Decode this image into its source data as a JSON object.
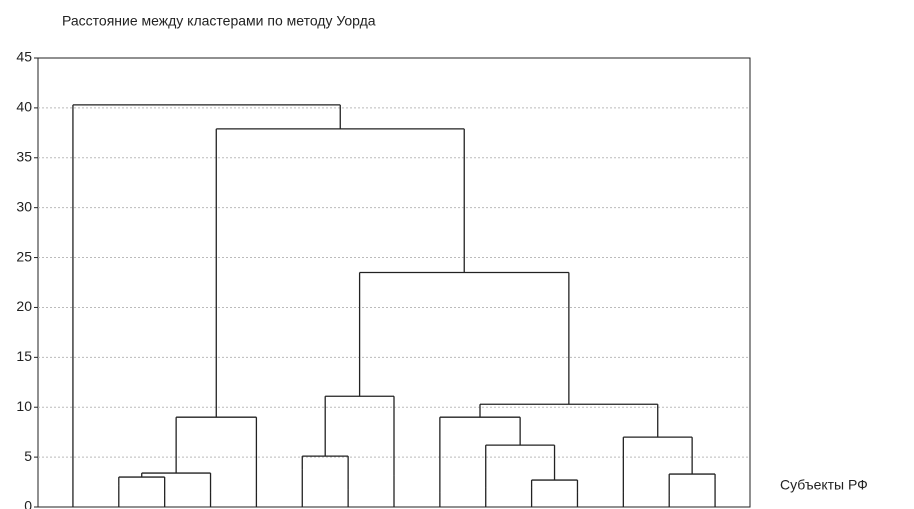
{
  "chart_data": {
    "type": "dendrogram",
    "title": "Расстояние между кластерами по методу Уорда",
    "x_label": "Субъекты РФ",
    "ylim": [
      0,
      45
    ],
    "yticks": [
      0,
      5,
      10,
      15,
      20,
      25,
      30,
      35,
      40,
      45
    ],
    "grid": true,
    "color": "#222222",
    "tree": {
      "height": 40.3,
      "children": [
        {
          "height": 0
        },
        {
          "height": 37.9,
          "children": [
            {
              "height": 9.0,
              "children": [
                {
                  "height": 3.4,
                  "children": [
                    {
                      "height": 3.0,
                      "children": [
                        {
                          "height": 2.2
                        },
                        {
                          "height": 1.2
                        }
                      ]
                    },
                    {
                      "height": 1.5
                    }
                  ]
                },
                {
                  "height": 1.5
                }
              ]
            },
            {
              "height": 23.5,
              "children": [
                {
                  "height": 11.1,
                  "children": [
                    {
                      "height": 5.1,
                      "children": [
                        {
                          "height": 3.8
                        },
                        {
                          "height": 1.8
                        }
                      ]
                    },
                    {
                      "height": 3.2
                    }
                  ]
                },
                {
                  "height": 10.3,
                  "children": [
                    {
                      "height": 9.0,
                      "children": [
                        {
                          "height": 1.5
                        },
                        {
                          "height": 6.2,
                          "children": [
                            {
                              "height": 2.0
                            },
                            {
                              "height": 2.7,
                              "children": [
                                {
                                  "height": 2.0
                                },
                                {
                                  "height": 1.5
                                }
                              ]
                            }
                          ]
                        }
                      ]
                    },
                    {
                      "height": 7.0,
                      "children": [
                        {
                          "height": 1.5
                        },
                        {
                          "height": 3.3,
                          "children": [
                            {
                              "height": 1.2
                            },
                            {
                              "height": 2.8
                            }
                          ]
                        }
                      ]
                    }
                  ]
                }
              ]
            }
          ]
        }
      ]
    }
  }
}
